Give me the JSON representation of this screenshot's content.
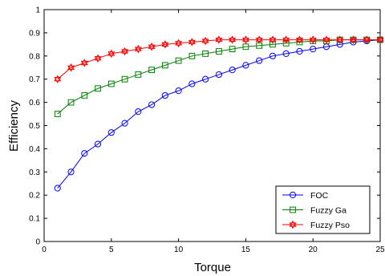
{
  "chart_data": {
    "type": "line",
    "title": "",
    "xlabel": "Torque",
    "ylabel": "Efficiency",
    "xlim": [
      0,
      25
    ],
    "ylim": [
      0,
      1
    ],
    "xticks": [
      0,
      5,
      10,
      15,
      20,
      25
    ],
    "yticks": [
      0,
      0.1,
      0.2,
      0.3,
      0.4,
      0.5,
      0.6,
      0.7,
      0.8,
      0.9,
      1
    ],
    "grid": false,
    "legend_position": "bottom-right",
    "x": [
      1,
      2,
      3,
      4,
      5,
      6,
      7,
      8,
      9,
      10,
      11,
      12,
      13,
      14,
      15,
      16,
      17,
      18,
      19,
      20,
      21,
      22,
      23,
      24,
      25
    ],
    "series": [
      {
        "name": "FOC",
        "color": "#0000ff",
        "marker": "circle",
        "values": [
          0.23,
          0.3,
          0.38,
          0.42,
          0.47,
          0.51,
          0.56,
          0.59,
          0.63,
          0.65,
          0.68,
          0.7,
          0.72,
          0.74,
          0.76,
          0.78,
          0.8,
          0.81,
          0.82,
          0.83,
          0.84,
          0.85,
          0.86,
          0.865,
          0.87
        ]
      },
      {
        "name": "Fuzzy Ga",
        "color": "#008000",
        "marker": "square",
        "values": [
          0.55,
          0.6,
          0.63,
          0.66,
          0.68,
          0.7,
          0.72,
          0.74,
          0.76,
          0.78,
          0.8,
          0.81,
          0.82,
          0.83,
          0.84,
          0.845,
          0.85,
          0.855,
          0.86,
          0.865,
          0.865,
          0.87,
          0.87,
          0.87,
          0.87
        ]
      },
      {
        "name": "Fuzzy Pso",
        "color": "#ff0000",
        "marker": "hexagram",
        "values": [
          0.7,
          0.75,
          0.77,
          0.79,
          0.81,
          0.82,
          0.83,
          0.84,
          0.85,
          0.855,
          0.86,
          0.865,
          0.87,
          0.87,
          0.87,
          0.87,
          0.87,
          0.87,
          0.87,
          0.87,
          0.87,
          0.87,
          0.87,
          0.87,
          0.87
        ]
      }
    ]
  }
}
